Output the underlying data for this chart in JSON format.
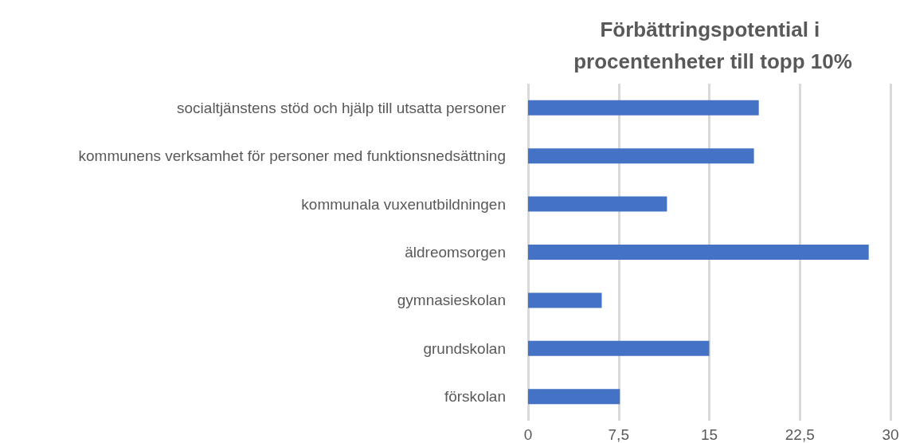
{
  "chart_data": {
    "type": "bar",
    "orientation": "horizontal",
    "title": "Förbättringspotential i procentenheter till topp 10%",
    "categories": [
      "socialtjänstens stöd och hjälp till utsatta personer",
      "kommunens verksamhet för personer med funktionsnedsättning",
      "kommunala vuxenutbildningen",
      "äldreomsorgen",
      "gymnasieskolan",
      "grundskolan",
      "förskolan"
    ],
    "values": [
      19.1,
      18.7,
      11.5,
      28.2,
      6.1,
      15.0,
      7.6
    ],
    "color": "#4472c4",
    "xlim": [
      0,
      30
    ],
    "xticks": [
      0,
      {
        "value": 7.5,
        "label": "7,5"
      },
      15,
      {
        "value": 22.5,
        "label": "22,5"
      },
      30
    ],
    "grid": "x"
  }
}
